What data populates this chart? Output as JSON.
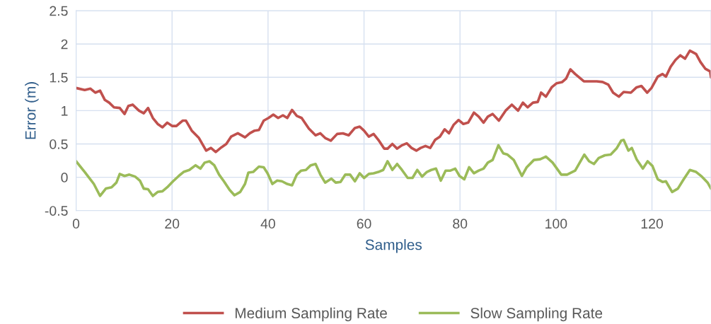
{
  "chart_data": {
    "type": "line",
    "xlabel": "Samples",
    "ylabel": "Error (m)",
    "xlim": [
      0,
      132.3
    ],
    "xticks": [
      0,
      20,
      40,
      60,
      80,
      100,
      120
    ],
    "ylim": [
      -0.5,
      2.5
    ],
    "yticks": [
      -0.5,
      0,
      0.5,
      1,
      1.5,
      2,
      2.5
    ],
    "grid": true,
    "legend": "bottom",
    "marker": "none",
    "line_style": "solid",
    "series": [
      {
        "name": "Medium Sampling Rate",
        "color": "#c0504d",
        "x": [
          0,
          1.8,
          3.0,
          4.0,
          5.0,
          6.0,
          6.9,
          7.9,
          9.1,
          10.1,
          10.9,
          11.8,
          13.1,
          14.1,
          15.0,
          16.0,
          17.0,
          18.0,
          19.0,
          20.0,
          20.9,
          22.2,
          22.9,
          24.1,
          25.6,
          27.1,
          28.1,
          29.1,
          30.3,
          31.3,
          32.3,
          33.7,
          35.2,
          36.2,
          37.2,
          38.1,
          39.1,
          40.1,
          41.1,
          42.1,
          43.1,
          44.0,
          45.0,
          46.0,
          47.0,
          48.5,
          49.9,
          50.9,
          51.9,
          53.1,
          54.4,
          55.6,
          56.8,
          58.1,
          59.1,
          60.0,
          61.0,
          62.0,
          63.0,
          64.2,
          64.9,
          65.9,
          66.9,
          67.9,
          68.9,
          69.9,
          70.9,
          71.8,
          72.8,
          73.8,
          74.8,
          75.8,
          76.8,
          77.7,
          78.7,
          79.7,
          80.7,
          81.7,
          82.9,
          83.9,
          84.9,
          85.8,
          86.8,
          88.1,
          89.5,
          90.8,
          92.1,
          93.1,
          94.1,
          95.2,
          96.2,
          96.9,
          97.9,
          99.1,
          100.1,
          101.3,
          102.1,
          103.0,
          104.0,
          105.8,
          107.0,
          108.5,
          109.7,
          110.9,
          111.9,
          113.1,
          114.1,
          115.6,
          116.8,
          117.8,
          119.0,
          119.9,
          121.2,
          122.2,
          122.9,
          123.9,
          124.9,
          125.9,
          126.9,
          127.9,
          129.2,
          130.1,
          131.1,
          132.1,
          132.3
        ],
        "values": [
          1.34,
          1.31,
          1.33,
          1.27,
          1.3,
          1.16,
          1.12,
          1.05,
          1.04,
          0.95,
          1.07,
          1.09,
          1.0,
          0.96,
          1.04,
          0.89,
          0.8,
          0.75,
          0.82,
          0.77,
          0.77,
          0.85,
          0.85,
          0.7,
          0.59,
          0.4,
          0.44,
          0.38,
          0.45,
          0.5,
          0.61,
          0.66,
          0.6,
          0.66,
          0.7,
          0.71,
          0.85,
          0.89,
          0.94,
          0.89,
          0.93,
          0.89,
          1.01,
          0.92,
          0.89,
          0.73,
          0.63,
          0.66,
          0.59,
          0.55,
          0.65,
          0.66,
          0.63,
          0.74,
          0.76,
          0.7,
          0.61,
          0.65,
          0.56,
          0.43,
          0.43,
          0.5,
          0.43,
          0.48,
          0.51,
          0.44,
          0.4,
          0.44,
          0.47,
          0.44,
          0.56,
          0.61,
          0.72,
          0.66,
          0.79,
          0.86,
          0.8,
          0.82,
          0.97,
          0.91,
          0.82,
          0.91,
          0.95,
          0.85,
          1.0,
          1.09,
          1.0,
          1.12,
          1.05,
          1.12,
          1.13,
          1.27,
          1.21,
          1.35,
          1.41,
          1.43,
          1.48,
          1.62,
          1.55,
          1.44,
          1.44,
          1.44,
          1.43,
          1.39,
          1.27,
          1.21,
          1.28,
          1.27,
          1.35,
          1.37,
          1.27,
          1.34,
          1.51,
          1.55,
          1.51,
          1.66,
          1.76,
          1.83,
          1.78,
          1.9,
          1.85,
          1.73,
          1.63,
          1.59,
          1.5
        ]
      },
      {
        "name": "Slow Sampling Rate",
        "color": "#9bbb59",
        "x": [
          0,
          1.8,
          3.7,
          5.0,
          6.2,
          7.4,
          8.4,
          9.1,
          10.1,
          11.1,
          12.3,
          13.3,
          14.1,
          15.0,
          16.0,
          17.0,
          18.0,
          19.0,
          20.2,
          21.4,
          22.4,
          23.6,
          24.9,
          25.9,
          26.8,
          27.8,
          28.8,
          29.8,
          30.8,
          32.0,
          33.0,
          34.2,
          35.2,
          35.9,
          36.9,
          38.1,
          39.1,
          39.9,
          40.9,
          41.9,
          42.9,
          44.0,
          45.0,
          46.0,
          46.9,
          47.9,
          48.9,
          49.9,
          50.9,
          51.9,
          53.2,
          54.1,
          55.1,
          56.1,
          57.1,
          58.1,
          59.1,
          60.0,
          61.0,
          62.0,
          63.0,
          64.0,
          64.9,
          65.9,
          66.9,
          67.9,
          69.1,
          70.1,
          71.1,
          72.1,
          73.1,
          74.0,
          75.0,
          76.0,
          77.0,
          78.0,
          79.0,
          79.9,
          80.9,
          81.9,
          82.9,
          83.9,
          84.9,
          85.8,
          86.8,
          88.0,
          89.0,
          89.9,
          91.2,
          92.9,
          93.9,
          95.4,
          96.7,
          97.9,
          99.3,
          101.1,
          102.3,
          104.0,
          105.9,
          106.9,
          107.9,
          108.9,
          110.2,
          111.4,
          112.6,
          113.6,
          114.1,
          115.1,
          115.8,
          116.8,
          118.1,
          119.1,
          120.1,
          121.2,
          122.2,
          122.9,
          124.2,
          125.4,
          126.6,
          127.9,
          129.2,
          130.4,
          131.6,
          132.3
        ],
        "values": [
          0.24,
          0.08,
          -0.1,
          -0.28,
          -0.17,
          -0.15,
          -0.08,
          0.05,
          0.02,
          0.04,
          0.01,
          -0.05,
          -0.17,
          -0.18,
          -0.28,
          -0.22,
          -0.21,
          -0.15,
          -0.06,
          0.02,
          0.08,
          0.11,
          0.18,
          0.13,
          0.22,
          0.24,
          0.18,
          0.04,
          -0.06,
          -0.19,
          -0.27,
          -0.22,
          -0.1,
          0.07,
          0.08,
          0.16,
          0.15,
          0.06,
          -0.1,
          -0.05,
          -0.06,
          -0.1,
          -0.12,
          0.04,
          0.1,
          0.11,
          0.18,
          0.2,
          0.04,
          -0.08,
          -0.02,
          -0.08,
          -0.07,
          0.04,
          0.04,
          -0.06,
          0.06,
          -0.01,
          0.05,
          0.06,
          0.08,
          0.11,
          0.24,
          0.11,
          0.2,
          0.11,
          -0.01,
          -0.01,
          0.11,
          0.01,
          0.08,
          0.11,
          0.13,
          -0.05,
          0.1,
          0.1,
          0.13,
          0.02,
          -0.03,
          0.15,
          0.06,
          0.1,
          0.13,
          0.22,
          0.26,
          0.48,
          0.36,
          0.34,
          0.26,
          0.02,
          0.15,
          0.26,
          0.27,
          0.31,
          0.22,
          0.04,
          0.04,
          0.1,
          0.34,
          0.24,
          0.2,
          0.29,
          0.33,
          0.34,
          0.43,
          0.55,
          0.56,
          0.4,
          0.44,
          0.27,
          0.13,
          0.24,
          0.17,
          -0.03,
          -0.07,
          -0.06,
          -0.22,
          -0.17,
          -0.03,
          0.11,
          0.08,
          0.01,
          -0.08,
          -0.17
        ]
      }
    ]
  }
}
